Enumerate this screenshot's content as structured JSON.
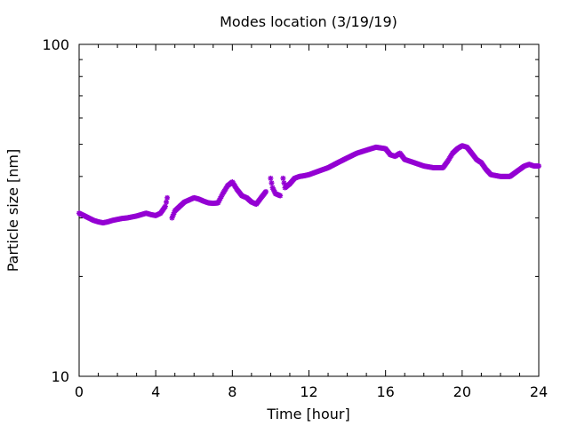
{
  "chart_data": {
    "type": "scatter",
    "title": "Modes location (3/19/19)",
    "xlabel": "Time [hour]",
    "ylabel": "Particle size [nm]",
    "xlim": [
      0,
      24
    ],
    "ylim": [
      10,
      100
    ],
    "yscale": "log",
    "grid": false,
    "x_ticks": [
      "0",
      "4",
      "8",
      "12",
      "16",
      "20",
      "24"
    ],
    "y_ticks": [
      "10",
      "100"
    ],
    "marker_color": "#9400d3",
    "series": [
      {
        "x": [
          0,
          0.25,
          0.5,
          0.75,
          1.0,
          1.25,
          1.5,
          1.75,
          2.0,
          2.25,
          2.5,
          2.75,
          3.0,
          3.25,
          3.5,
          3.75,
          4.0,
          4.25,
          4.5,
          4.6,
          4.85,
          5.0,
          5.25,
          5.5,
          5.75,
          6.0,
          6.25,
          6.5,
          6.75,
          7.0,
          7.25,
          7.5,
          7.75,
          8.0,
          8.25,
          8.5,
          8.75,
          9.0,
          9.25,
          9.5,
          9.75,
          10.0,
          10.1,
          10.25,
          10.5,
          10.65,
          10.75,
          11.0,
          11.25,
          11.5,
          11.75,
          12.0,
          12.5,
          13.0,
          13.5,
          14.0,
          14.5,
          15.0,
          15.5,
          16.0,
          16.25,
          16.5,
          16.75,
          17.0,
          17.5,
          18.0,
          18.5,
          19.0,
          19.25,
          19.5,
          19.75,
          20.0,
          20.25,
          20.5,
          20.75,
          21.0,
          21.25,
          21.5,
          22.0,
          22.5,
          22.75,
          23.0,
          23.25,
          23.5,
          23.75,
          24.0
        ],
        "y": [
          31,
          30.5,
          30,
          29.5,
          29.2,
          29,
          29.2,
          29.5,
          29.7,
          29.9,
          30,
          30.2,
          30.4,
          30.7,
          31,
          30.7,
          30.5,
          31,
          32.5,
          34.5,
          30,
          31.5,
          32.5,
          33.5,
          34,
          34.5,
          34.2,
          33.7,
          33.3,
          33.2,
          33.3,
          35.5,
          37.5,
          38.5,
          36.5,
          35,
          34.5,
          33.5,
          33,
          34.5,
          36,
          39.5,
          37,
          35.5,
          35,
          39.5,
          37,
          38,
          39.5,
          40,
          40.2,
          40.5,
          41.5,
          42.5,
          44,
          45.5,
          47,
          48,
          49,
          48.5,
          46.5,
          46,
          47,
          45,
          44,
          43,
          42.5,
          42.5,
          44.5,
          47,
          48.5,
          49.5,
          49,
          47,
          45,
          44,
          42,
          40.5,
          40,
          40,
          41,
          42,
          43,
          43.5,
          43,
          43
        ]
      }
    ]
  }
}
